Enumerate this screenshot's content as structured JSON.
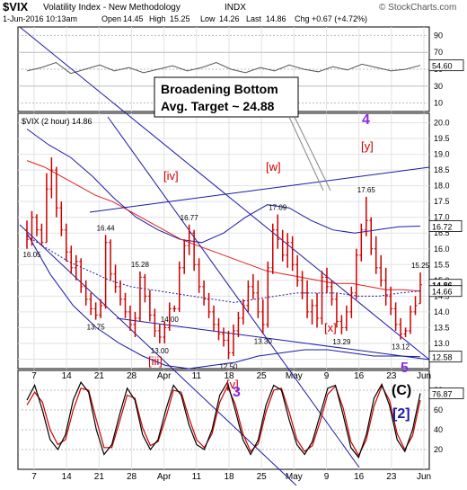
{
  "header": {
    "symbol": "$VIX",
    "name": "Volatility Index - New Methodology",
    "exchange": "INDX",
    "copyright": "© StockCharts.com",
    "datetime": "1-Jun-2016 10:13am",
    "open_label": "Open",
    "open": "14.45",
    "high_label": "High",
    "high": "15.25",
    "low_label": "Low",
    "low": "14.26",
    "last_label": "Last",
    "last": "14.86",
    "chg_label": "Chg",
    "chg": "+0.67 (+4.72%)"
  },
  "colors": {
    "background": "#ffffff",
    "price_bars": "#cc0000",
    "blue_lines": "#1a1aa8",
    "ma_red": "#e02020",
    "rsi_line": "#555555",
    "purple": "#8a2be2",
    "osc_red": "#cc0000",
    "osc_black": "#000000"
  },
  "annotations": {
    "callout_line1": "Broadening Bottom",
    "callout_line2": "Avg. Target ~ 24.88",
    "wave_4": "4",
    "wave_y": "[y]",
    "wave_w": "[w]",
    "wave_iv": "[iv]",
    "wave_iii": "[iii]",
    "wave_v": "[v]",
    "wave_x": "[x]",
    "wave_3": "3",
    "wave_5": "5",
    "wave_C": "(C)",
    "wave_2": "[2]",
    "legend": "$VIX (2 hour) 14.86"
  },
  "chart_data": [
    {
      "type": "line",
      "panel": "rsi",
      "yaxis_ticks": [
        "90",
        "70",
        "50",
        "30",
        "10"
      ],
      "ylim": [
        0,
        100
      ],
      "last_value": "54.60",
      "values": [
        48,
        52,
        58,
        45,
        50,
        55,
        48,
        52,
        46,
        50,
        54,
        48,
        52,
        58,
        50,
        46,
        52,
        48,
        55,
        50,
        47,
        53,
        49,
        56,
        52,
        48,
        50,
        54.6
      ]
    },
    {
      "type": "bar",
      "panel": "price",
      "title": "$VIX (2 hour) 14.86",
      "yaxis_ticks": [
        "20.0",
        "19.5",
        "19.0",
        "18.5",
        "18.0",
        "17.5",
        "17.0",
        "16.5",
        "16.0",
        "15.5",
        "15.0",
        "14.5",
        "14.0",
        "13.5",
        "13.0",
        "12.5"
      ],
      "ylim": [
        12.2,
        20.3
      ],
      "xaxis_ticks": [
        "7",
        "14",
        "21",
        "28",
        "Apr",
        "11",
        "18",
        "25",
        "May",
        "9",
        "16",
        "23",
        "Jun"
      ],
      "price_labels": [
        "16.05",
        "16.44",
        "16.77",
        "15.28",
        "14.00",
        "13.75",
        "13.00",
        "12.50",
        "17.09",
        "13.30",
        "13.29",
        "17.65",
        "15.25",
        "13.12"
      ],
      "right_labels": [
        "16.72",
        "14.86",
        "14.66",
        "12.58"
      ],
      "ohlc": [
        [
          16.6,
          16.9,
          16.0,
          16.3
        ],
        [
          16.3,
          17.2,
          16.1,
          17.0
        ],
        [
          17.0,
          17.1,
          16.4,
          16.6
        ],
        [
          16.6,
          16.8,
          16.1,
          16.2
        ],
        [
          16.2,
          18.4,
          16.2,
          17.9
        ],
        [
          17.9,
          18.9,
          17.6,
          18.5
        ],
        [
          18.5,
          18.6,
          17.0,
          17.3
        ],
        [
          17.3,
          17.5,
          16.4,
          16.6
        ],
        [
          16.6,
          16.8,
          15.6,
          15.9
        ],
        [
          15.9,
          16.1,
          15.2,
          15.4
        ],
        [
          15.4,
          15.8,
          15.0,
          15.6
        ],
        [
          15.6,
          15.7,
          14.6,
          14.8
        ],
        [
          14.8,
          15.0,
          14.2,
          14.4
        ],
        [
          14.4,
          14.6,
          13.9,
          14.1
        ],
        [
          14.1,
          14.3,
          13.75,
          13.9
        ],
        [
          13.9,
          14.4,
          13.8,
          14.2
        ],
        [
          14.2,
          16.44,
          14.1,
          16.2
        ],
        [
          16.2,
          16.3,
          15.0,
          15.2
        ],
        [
          15.2,
          15.5,
          14.6,
          14.8
        ],
        [
          14.8,
          15.0,
          14.2,
          14.4
        ],
        [
          14.4,
          14.6,
          13.8,
          14.0
        ],
        [
          14.0,
          14.2,
          13.4,
          13.6
        ],
        [
          13.6,
          14.0,
          13.2,
          13.8
        ],
        [
          13.8,
          15.28,
          13.7,
          15.1
        ],
        [
          15.1,
          15.2,
          14.3,
          14.5
        ],
        [
          14.5,
          14.7,
          13.7,
          13.9
        ],
        [
          13.9,
          14.1,
          13.2,
          13.4
        ],
        [
          13.4,
          13.6,
          13.0,
          13.2
        ],
        [
          13.2,
          13.7,
          13.0,
          13.5
        ],
        [
          13.5,
          14.3,
          13.4,
          14.1
        ],
        [
          14.1,
          14.2,
          14.0,
          14.1
        ],
        [
          14.1,
          15.6,
          14.0,
          15.4
        ],
        [
          15.4,
          16.3,
          15.2,
          16.1
        ],
        [
          16.1,
          16.77,
          15.8,
          16.5
        ],
        [
          16.5,
          16.6,
          15.3,
          15.5
        ],
        [
          15.5,
          15.7,
          14.6,
          14.8
        ],
        [
          14.8,
          15.0,
          14.2,
          14.4
        ],
        [
          14.4,
          14.6,
          13.8,
          14.0
        ],
        [
          14.0,
          14.2,
          13.4,
          13.6
        ],
        [
          13.6,
          13.8,
          13.1,
          13.3
        ],
        [
          13.3,
          13.5,
          12.9,
          13.1
        ],
        [
          13.1,
          13.4,
          12.5,
          12.7
        ],
        [
          12.7,
          13.6,
          12.6,
          13.4
        ],
        [
          13.4,
          14.0,
          13.2,
          13.8
        ],
        [
          13.8,
          14.4,
          13.6,
          14.2
        ],
        [
          14.2,
          15.0,
          14.0,
          14.8
        ],
        [
          14.8,
          15.2,
          14.4,
          14.6
        ],
        [
          14.6,
          15.0,
          13.8,
          14.0
        ],
        [
          14.0,
          14.4,
          13.3,
          13.6
        ],
        [
          13.6,
          15.6,
          13.5,
          15.4
        ],
        [
          15.4,
          16.8,
          15.2,
          16.6
        ],
        [
          16.6,
          17.09,
          16.0,
          16.3
        ],
        [
          16.3,
          16.6,
          15.6,
          15.8
        ],
        [
          15.8,
          16.5,
          15.4,
          16.2
        ],
        [
          16.2,
          16.4,
          15.3,
          15.5
        ],
        [
          15.5,
          15.8,
          14.8,
          15.0
        ],
        [
          15.0,
          15.3,
          14.4,
          14.6
        ],
        [
          14.6,
          15.0,
          13.8,
          14.0
        ],
        [
          14.0,
          14.4,
          13.6,
          14.2
        ],
        [
          14.2,
          14.6,
          13.5,
          13.8
        ],
        [
          13.8,
          15.3,
          13.6,
          15.1
        ],
        [
          15.1,
          15.4,
          14.6,
          14.8
        ],
        [
          14.8,
          15.0,
          14.2,
          14.4
        ],
        [
          14.4,
          14.6,
          13.5,
          13.7
        ],
        [
          13.7,
          13.9,
          13.29,
          13.5
        ],
        [
          13.5,
          14.2,
          13.4,
          14.0
        ],
        [
          14.0,
          14.8,
          13.8,
          14.6
        ],
        [
          14.6,
          16.0,
          14.4,
          15.8
        ],
        [
          15.8,
          16.8,
          15.6,
          16.6
        ],
        [
          16.6,
          17.65,
          16.4,
          16.9
        ],
        [
          16.9,
          17.0,
          15.8,
          16.0
        ],
        [
          16.0,
          16.4,
          15.2,
          15.4
        ],
        [
          15.4,
          15.8,
          14.8,
          15.0
        ],
        [
          15.0,
          15.4,
          14.2,
          14.5
        ],
        [
          14.5,
          14.8,
          13.9,
          14.1
        ],
        [
          14.1,
          14.3,
          13.4,
          13.6
        ],
        [
          13.6,
          13.8,
          13.12,
          13.3
        ],
        [
          13.3,
          13.5,
          13.2,
          13.4
        ],
        [
          13.4,
          14.2,
          13.3,
          14.0
        ],
        [
          14.0,
          14.5,
          13.9,
          14.2
        ],
        [
          14.26,
          15.25,
          14.26,
          14.86
        ]
      ],
      "ma50": [
        18.8,
        18.6,
        18.3,
        18.0,
        17.7,
        17.5,
        17.2,
        16.9,
        16.6,
        16.3,
        16.1,
        15.9,
        15.7,
        15.5,
        15.3,
        15.2,
        15.1,
        15.0,
        14.9,
        14.9,
        14.8,
        14.7,
        14.7,
        14.66
      ],
      "ma20": [
        16.4,
        16.0,
        15.6,
        15.3,
        15.0,
        14.8,
        14.7,
        14.6,
        14.5,
        14.4,
        14.3,
        14.4,
        14.5,
        14.6,
        14.6,
        14.6,
        14.5,
        14.5,
        14.6,
        14.66
      ],
      "bb_upper": [
        19.8,
        19.3,
        18.9,
        18.3,
        17.6,
        17.0,
        16.6,
        16.3,
        16.2,
        16.5,
        17.0,
        17.4,
        17.3,
        16.9,
        16.6,
        16.5,
        16.6,
        16.7,
        16.72
      ],
      "bb_lower": [
        16.5,
        15.2,
        14.2,
        13.5,
        13.0,
        12.6,
        12.3,
        12.2,
        12.3,
        12.4,
        12.6,
        12.7,
        12.8,
        12.8,
        12.7,
        12.6,
        12.6,
        12.58
      ]
    },
    {
      "type": "line",
      "panel": "oscillator",
      "yaxis_ticks": [
        "80",
        "60",
        "40",
        "20"
      ],
      "ylim": [
        0,
        100
      ],
      "last_value": "76.87",
      "fast": [
        70,
        85,
        60,
        30,
        20,
        35,
        70,
        88,
        78,
        40,
        15,
        25,
        55,
        82,
        70,
        35,
        20,
        30,
        60,
        85,
        75,
        45,
        25,
        20,
        40,
        75,
        88,
        60,
        30,
        15,
        30,
        65,
        85,
        80,
        50,
        25,
        15,
        28,
        55,
        82,
        85,
        55,
        22,
        12,
        35,
        72,
        86,
        65,
        30,
        18,
        40,
        76.87
      ],
      "slow": [
        65,
        78,
        68,
        40,
        25,
        30,
        60,
        82,
        80,
        50,
        22,
        22,
        48,
        75,
        72,
        42,
        24,
        28,
        52,
        80,
        78,
        52,
        30,
        22,
        36,
        68,
        84,
        66,
        36,
        18,
        26,
        58,
        80,
        82,
        58,
        30,
        18,
        24,
        48,
        76,
        84,
        62,
        28,
        14,
        30,
        64,
        84,
        70,
        36,
        20,
        34,
        70
      ]
    }
  ]
}
